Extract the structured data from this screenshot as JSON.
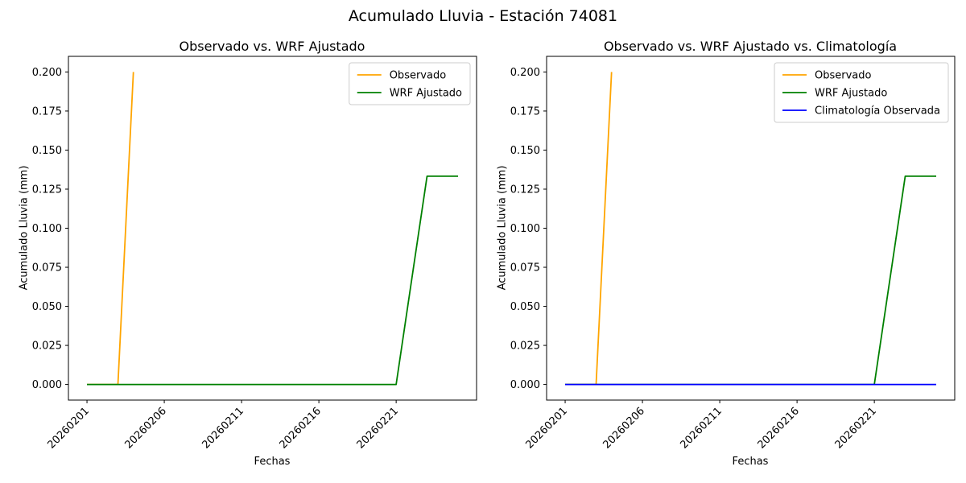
{
  "figure": {
    "suptitle": "Acumulado Lluvia - Estación 74081",
    "background_color": "#ffffff"
  },
  "chart_data": [
    {
      "type": "line",
      "title": "Observado vs. WRF Ajustado",
      "xlabel": "Fechas",
      "ylabel": "Acumulado Lluvia (mm)",
      "xlim": [
        -0.2,
        26.2
      ],
      "ylim": [
        -0.01,
        0.21
      ],
      "x_ticks": [
        1,
        6,
        11,
        16,
        21
      ],
      "x_tick_labels": [
        "20260201",
        "20260206",
        "20260211",
        "20260216",
        "20260221"
      ],
      "y_ticks": [
        0,
        0.025,
        0.05,
        0.075,
        0.1,
        0.125,
        0.15,
        0.175,
        0.2
      ],
      "y_tick_labels": [
        "0.000",
        "0.025",
        "0.050",
        "0.075",
        "0.100",
        "0.125",
        "0.150",
        "0.175",
        "0.200"
      ],
      "grid": false,
      "legend_position": "upper right",
      "series": [
        {
          "name": "Observado",
          "color": "#ffa500",
          "x": [
            1,
            2,
            3,
            4
          ],
          "y": [
            0,
            0,
            0,
            0.2
          ]
        },
        {
          "name": "WRF Ajustado",
          "color": "#008000",
          "x": [
            1,
            2,
            3,
            4,
            5,
            6,
            7,
            8,
            9,
            10,
            11,
            12,
            13,
            14,
            15,
            16,
            17,
            18,
            19,
            20,
            21,
            22,
            23,
            24,
            25
          ],
          "y": [
            0,
            0,
            0,
            0,
            0,
            0,
            0,
            0,
            0,
            0,
            0,
            0,
            0,
            0,
            0,
            0,
            0,
            0,
            0,
            0,
            0,
            0.0667,
            0.1333,
            0.1333,
            0.1333
          ]
        }
      ]
    },
    {
      "type": "line",
      "title": "Observado vs. WRF Ajustado vs. Climatología",
      "xlabel": "Fechas",
      "ylabel": "Acumulado Lluvia (mm)",
      "xlim": [
        -0.2,
        26.2
      ],
      "ylim": [
        -0.01,
        0.21
      ],
      "x_ticks": [
        1,
        6,
        11,
        16,
        21
      ],
      "x_tick_labels": [
        "20260201",
        "20260206",
        "20260211",
        "20260216",
        "20260221"
      ],
      "y_ticks": [
        0,
        0.025,
        0.05,
        0.075,
        0.1,
        0.125,
        0.15,
        0.175,
        0.2
      ],
      "y_tick_labels": [
        "0.000",
        "0.025",
        "0.050",
        "0.075",
        "0.100",
        "0.125",
        "0.150",
        "0.175",
        "0.200"
      ],
      "grid": false,
      "legend_position": "upper right",
      "series": [
        {
          "name": "Observado",
          "color": "#ffa500",
          "x": [
            1,
            2,
            3,
            4
          ],
          "y": [
            0,
            0,
            0,
            0.2
          ]
        },
        {
          "name": "WRF Ajustado",
          "color": "#008000",
          "x": [
            1,
            2,
            3,
            4,
            5,
            6,
            7,
            8,
            9,
            10,
            11,
            12,
            13,
            14,
            15,
            16,
            17,
            18,
            19,
            20,
            21,
            22,
            23,
            24,
            25
          ],
          "y": [
            0,
            0,
            0,
            0,
            0,
            0,
            0,
            0,
            0,
            0,
            0,
            0,
            0,
            0,
            0,
            0,
            0,
            0,
            0,
            0,
            0,
            0.0667,
            0.1333,
            0.1333,
            0.1333
          ]
        },
        {
          "name": "Climatología Observada",
          "color": "#0000ff",
          "x": [
            1,
            2,
            3,
            4,
            5,
            6,
            7,
            8,
            9,
            10,
            11,
            12,
            13,
            14,
            15,
            16,
            17,
            18,
            19,
            20,
            21,
            22,
            23,
            24,
            25
          ],
          "y": [
            0,
            0,
            0,
            0,
            0,
            0,
            0,
            0,
            0,
            0,
            0,
            0,
            0,
            0,
            0,
            0,
            0,
            0,
            0,
            0,
            0,
            0,
            0,
            0,
            0
          ]
        }
      ]
    }
  ]
}
